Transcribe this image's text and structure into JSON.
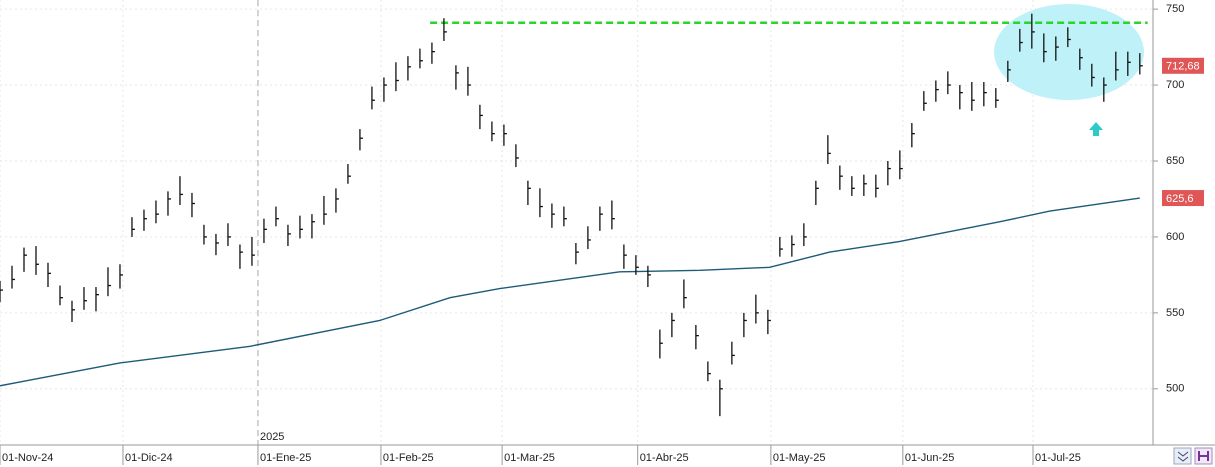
{
  "chart_data": {
    "type": "ohlc",
    "x": [
      0,
      2,
      4,
      6,
      8,
      10,
      12,
      14,
      16,
      18,
      20,
      22,
      24,
      26,
      28,
      30,
      32,
      34,
      36,
      38,
      40,
      42,
      44,
      46,
      48,
      50,
      52,
      54,
      56,
      58,
      60,
      62,
      64,
      66,
      68,
      70,
      72,
      74,
      76,
      78,
      80,
      82,
      84,
      86,
      88,
      90,
      92,
      94,
      96,
      98,
      100,
      102,
      104,
      106,
      108,
      110,
      112,
      114,
      116,
      118,
      120,
      122,
      124,
      126,
      128,
      130,
      132,
      134,
      136,
      138,
      140,
      142,
      144,
      146,
      148,
      150,
      152,
      154,
      156,
      158,
      160,
      162,
      164,
      166,
      168,
      170,
      172,
      174,
      176,
      178,
      180,
      182,
      184,
      186,
      188,
      190
    ],
    "high": [
      571,
      581,
      593,
      594,
      583,
      568,
      558,
      567,
      567,
      580,
      582,
      613,
      618,
      624,
      630,
      640,
      629,
      608,
      602,
      609,
      595,
      600,
      612,
      620,
      608,
      614,
      615,
      627,
      632,
      648,
      671,
      699,
      705,
      715,
      719,
      724,
      728,
      744,
      713,
      712,
      687,
      676,
      674,
      661,
      637,
      632,
      622,
      620,
      596,
      607,
      620,
      624,
      595,
      588,
      581,
      539,
      550,
      572,
      542,
      518,
      506,
      531,
      550,
      562,
      552,
      600,
      601,
      609,
      637,
      667,
      647,
      640,
      641,
      641,
      650,
      657,
      675,
      696,
      703,
      709,
      700,
      702,
      702,
      698,
      716,
      737,
      747,
      734,
      732,
      738,
      724,
      714,
      705,
      722,
      722,
      721
    ],
    "low": [
      557,
      566,
      577,
      575,
      567,
      555,
      544,
      552,
      551,
      561,
      566,
      600,
      604,
      609,
      614,
      621,
      613,
      595,
      588,
      594,
      579,
      581,
      596,
      607,
      594,
      599,
      599,
      608,
      616,
      635,
      657,
      684,
      689,
      696,
      703,
      711,
      714,
      729,
      697,
      693,
      671,
      663,
      660,
      646,
      621,
      613,
      606,
      607,
      582,
      592,
      604,
      605,
      579,
      575,
      567,
      520,
      534,
      553,
      526,
      505,
      482,
      516,
      534,
      543,
      536,
      587,
      587,
      594,
      621,
      648,
      631,
      627,
      627,
      626,
      634,
      638,
      659,
      683,
      689,
      694,
      684,
      683,
      686,
      685,
      702,
      722,
      724,
      715,
      716,
      725,
      710,
      699,
      689,
      703,
      706,
      707
    ],
    "close": [
      565,
      572,
      588,
      582,
      576,
      560,
      552,
      558,
      562,
      568,
      575,
      605,
      612,
      615,
      625,
      628,
      622,
      600,
      596,
      600,
      590,
      588,
      605,
      612,
      602,
      605,
      610,
      615,
      625,
      640,
      665,
      690,
      700,
      703,
      712,
      716,
      722,
      735,
      708,
      700,
      680,
      668,
      668,
      652,
      632,
      620,
      615,
      612,
      590,
      598,
      615,
      612,
      588,
      580,
      575,
      530,
      545,
      560,
      535,
      510,
      500,
      522,
      545,
      550,
      545,
      592,
      595,
      600,
      632,
      655,
      640,
      632,
      635,
      632,
      645,
      645,
      668,
      688,
      697,
      700,
      695,
      690,
      695,
      690,
      710,
      728,
      735,
      722,
      725,
      730,
      718,
      705,
      700,
      710,
      715,
      712.68
    ],
    "bar_color": "#111111",
    "moving_average": {
      "color": "#1d5b78",
      "x": [
        0,
        20,
        41.7,
        63.3,
        75,
        83.3,
        103.3,
        116.7,
        128.3,
        138.3,
        150,
        166.7,
        175,
        190
      ],
      "values": [
        502,
        517,
        528,
        545,
        560,
        566,
        577,
        578,
        580,
        590,
        597,
        610,
        617,
        625.6
      ],
      "value_label": "625,6"
    },
    "last_price": {
      "value": 712.68,
      "label": "712,68"
    },
    "resistance": {
      "x": [
        71.7,
        191.3
      ],
      "value": 741,
      "color": "#2ad52a"
    },
    "year_marker": {
      "x": 43,
      "label": "2025"
    },
    "xlim": [
      0,
      191.7
    ],
    "xticks": [
      {
        "value": 0,
        "label": "01-Nov-24"
      },
      {
        "value": 20.5,
        "label": "01-Dic-24"
      },
      {
        "value": 43,
        "label": "01-Ene-25"
      },
      {
        "value": 63.5,
        "label": "01-Feb-25"
      },
      {
        "value": 83.7,
        "label": "01-Mar-25"
      },
      {
        "value": 106.3,
        "label": "01-Abr-25"
      },
      {
        "value": 128.5,
        "label": "01-May-25"
      },
      {
        "value": 150.5,
        "label": "01-Jun-25"
      },
      {
        "value": 172.2,
        "label": "01-Jul-25"
      }
    ],
    "ylim": [
      463,
      756
    ],
    "yticks": [
      500,
      550,
      600,
      650,
      700,
      750
    ],
    "grid": true
  }
}
